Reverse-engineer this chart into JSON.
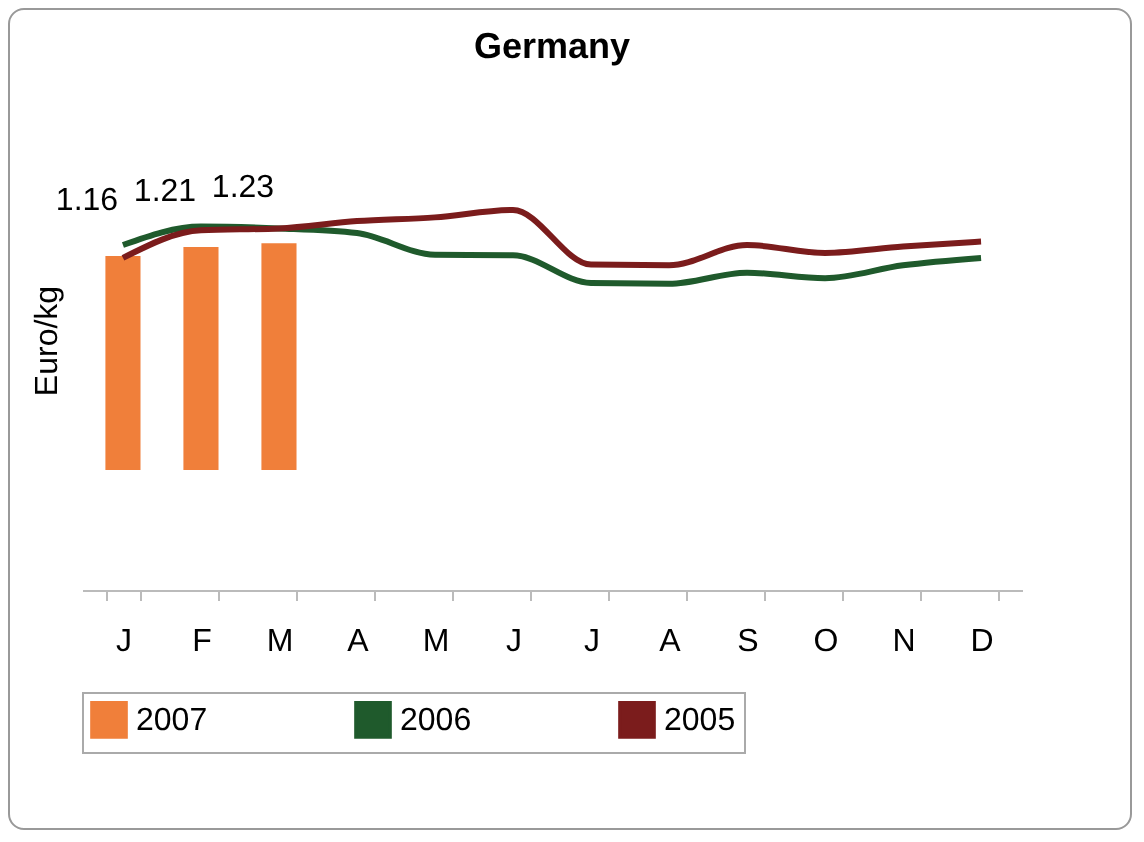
{
  "chart_data": {
    "type": "bar",
    "title": "Germany",
    "ylabel": "Euro/kg",
    "categories": [
      "J",
      "F",
      "M",
      "A",
      "M",
      "J",
      "J",
      "A",
      "S",
      "O",
      "N",
      "D"
    ],
    "tick_labels": "x",
    "legend": "bottom",
    "grid": false,
    "series": [
      {
        "name": "2007",
        "color": "#f07f3a",
        "values": [
          1.16,
          1.21,
          1.23,
          null,
          null,
          null,
          null,
          null,
          null,
          null,
          null,
          null
        ],
        "value_labels": [
          "1.16",
          "1.21",
          "1.23",
          null,
          null,
          null,
          null,
          null,
          null,
          null,
          null,
          null
        ]
      },
      {
        "name": "2006",
        "type": "line",
        "color": "#1f5a2c",
        "values": [
          1.22,
          1.32,
          1.31,
          1.285,
          1.167,
          1.164,
          1.014,
          1.01,
          1.07,
          1.04,
          1.11,
          1.15
        ]
      },
      {
        "name": "2005",
        "type": "line",
        "color": "#7b1c1c",
        "values": [
          1.15,
          1.3,
          1.31,
          1.35,
          1.37,
          1.41,
          1.114,
          1.11,
          1.22,
          1.177,
          1.212,
          1.239
        ]
      }
    ]
  }
}
